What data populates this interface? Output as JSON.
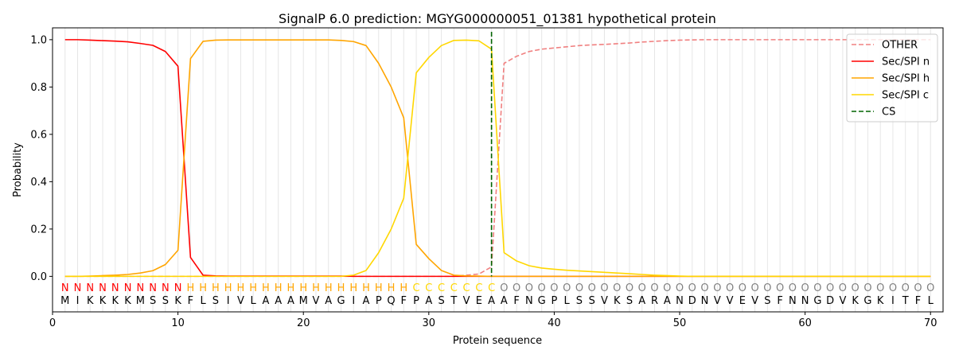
{
  "chart_data": {
    "type": "line",
    "title": "SignalP 6.0 prediction: MGYG000000051_01381 hypothetical protein",
    "xlabel": "Protein sequence",
    "ylabel": "Probability",
    "xlim": [
      0,
      71
    ],
    "ylim": [
      -0.15,
      1.05
    ],
    "x_ticks": [
      0,
      10,
      20,
      30,
      40,
      50,
      60,
      70
    ],
    "y_ticks": [
      0.0,
      0.2,
      0.4,
      0.6,
      0.8,
      1.0
    ],
    "x_tick_labels": [
      "0",
      "10",
      "20",
      "30",
      "40",
      "50",
      "60",
      "70"
    ],
    "y_tick_labels": [
      "0.0",
      "0.2",
      "0.4",
      "0.6",
      "0.8",
      "1.0"
    ],
    "grid": "vertical lines at each residue",
    "legend_position": "top-right",
    "sequence": [
      "M",
      "I",
      "K",
      "K",
      "K",
      "K",
      "M",
      "S",
      "S",
      "K",
      "F",
      "L",
      "S",
      "I",
      "V",
      "L",
      "A",
      "A",
      "A",
      "M",
      "V",
      "A",
      "G",
      "I",
      "A",
      "P",
      "Q",
      "F",
      "P",
      "A",
      "S",
      "T",
      "V",
      "E",
      "A",
      "A",
      "F",
      "N",
      "G",
      "P",
      "L",
      "S",
      "S",
      "V",
      "K",
      "S",
      "A",
      "R",
      "A",
      "N",
      "D",
      "N",
      "V",
      "V",
      "E",
      "V",
      "S",
      "F",
      "N",
      "N",
      "G",
      "D",
      "V",
      "K",
      "G",
      "K",
      "I",
      "T",
      "F",
      "L"
    ],
    "region_labels": [
      "N",
      "N",
      "N",
      "N",
      "N",
      "N",
      "N",
      "N",
      "N",
      "N",
      "H",
      "H",
      "H",
      "H",
      "H",
      "H",
      "H",
      "H",
      "H",
      "H",
      "H",
      "H",
      "H",
      "H",
      "H",
      "H",
      "H",
      "H",
      "C",
      "C",
      "C",
      "C",
      "C",
      "C",
      "C",
      "O",
      "O",
      "O",
      "O",
      "O",
      "O",
      "O",
      "O",
      "O",
      "O",
      "O",
      "O",
      "O",
      "O",
      "O",
      "O",
      "O",
      "O",
      "O",
      "O",
      "O",
      "O",
      "O",
      "O",
      "O",
      "O",
      "O",
      "O",
      "O",
      "O",
      "O",
      "O",
      "O",
      "O",
      "O"
    ],
    "region_colors": {
      "N": "#ff0000",
      "H": "#ffa500",
      "C": "#ffd700",
      "O": "#808080"
    },
    "cleavage_site": 35,
    "series": [
      {
        "name": "OTHER",
        "color": "#f08080",
        "dash": "dashed",
        "values": [
          0,
          0,
          0,
          0,
          0,
          0,
          0,
          0,
          0,
          0,
          0,
          0,
          0,
          0,
          0,
          0,
          0,
          0,
          0,
          0,
          0,
          0,
          0,
          0,
          0,
          0,
          0,
          0,
          0,
          0,
          0,
          0,
          0.005,
          0.01,
          0.04,
          0.9,
          0.93,
          0.95,
          0.96,
          0.965,
          0.97,
          0.975,
          0.978,
          0.98,
          0.983,
          0.986,
          0.99,
          0.993,
          0.996,
          0.998,
          0.999,
          1,
          1,
          1,
          1,
          1,
          1,
          1,
          1,
          1,
          1,
          1,
          1,
          1,
          1,
          1,
          1,
          1,
          1,
          1
        ]
      },
      {
        "name": "Sec/SPI n",
        "color": "#ff0000",
        "dash": "solid",
        "values": [
          1,
          1,
          0.998,
          0.996,
          0.994,
          0.991,
          0.984,
          0.976,
          0.95,
          0.888,
          0.08,
          0.005,
          0.002,
          0.001,
          0.001,
          0.001,
          0.001,
          0.001,
          0.001,
          0.001,
          0.001,
          0.001,
          0.001,
          0,
          0,
          0,
          0,
          0,
          0,
          0,
          0,
          0,
          0,
          0,
          0,
          0,
          0,
          0,
          0,
          0,
          0,
          0,
          0,
          0,
          0,
          0,
          0,
          0,
          0,
          0,
          0,
          0,
          0,
          0,
          0,
          0,
          0,
          0,
          0,
          0,
          0,
          0,
          0,
          0,
          0,
          0,
          0,
          0,
          0,
          0
        ]
      },
      {
        "name": "Sec/SPI h",
        "color": "#ffa500",
        "dash": "solid",
        "values": [
          0,
          0,
          0.001,
          0.003,
          0.005,
          0.008,
          0.014,
          0.024,
          0.05,
          0.11,
          0.92,
          0.993,
          0.998,
          0.999,
          0.999,
          0.999,
          0.999,
          0.999,
          0.999,
          0.999,
          0.999,
          0.999,
          0.997,
          0.992,
          0.975,
          0.9,
          0.8,
          0.67,
          0.135,
          0.075,
          0.025,
          0.005,
          0.002,
          0.001,
          0,
          0,
          0,
          0,
          0,
          0,
          0,
          0,
          0,
          0,
          0,
          0,
          0,
          0,
          0,
          0,
          0,
          0,
          0,
          0,
          0,
          0,
          0,
          0,
          0,
          0,
          0,
          0,
          0,
          0,
          0,
          0,
          0,
          0,
          0,
          0
        ]
      },
      {
        "name": "Sec/SPI c",
        "color": "#ffd700",
        "dash": "solid",
        "values": [
          0,
          0,
          0,
          0,
          0,
          0,
          0,
          0,
          0,
          0,
          0,
          0,
          0,
          0,
          0,
          0,
          0,
          0,
          0,
          0,
          0,
          0,
          0,
          0.005,
          0.025,
          0.1,
          0.2,
          0.33,
          0.86,
          0.925,
          0.975,
          0.997,
          0.998,
          0.995,
          0.96,
          0.1,
          0.065,
          0.045,
          0.035,
          0.03,
          0.026,
          0.023,
          0.02,
          0.017,
          0.014,
          0.011,
          0.008,
          0.005,
          0.003,
          0.001,
          0,
          0,
          0,
          0,
          0,
          0,
          0,
          0,
          0,
          0,
          0,
          0,
          0,
          0,
          0,
          0,
          0,
          0,
          0,
          0
        ]
      }
    ],
    "legend": [
      {
        "label": "OTHER",
        "color": "#f08080",
        "dash": "dashed"
      },
      {
        "label": "Sec/SPI n",
        "color": "#ff0000",
        "dash": "solid"
      },
      {
        "label": "Sec/SPI h",
        "color": "#ffa500",
        "dash": "solid"
      },
      {
        "label": "Sec/SPI c",
        "color": "#ffd700",
        "dash": "solid"
      },
      {
        "label": "CS",
        "color": "#006400",
        "dash": "dashed"
      }
    ]
  }
}
